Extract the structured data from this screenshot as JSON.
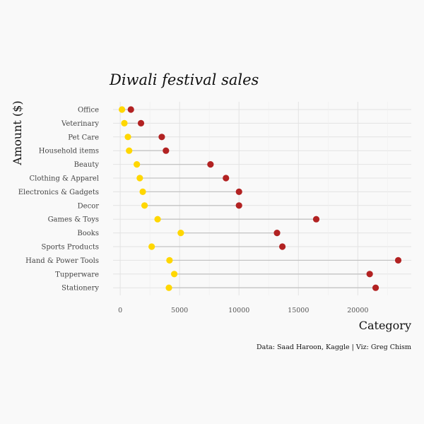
{
  "chart_data": {
    "type": "dumbbell",
    "title": "Diwali festival sales",
    "xlabel": "Category",
    "ylabel": "Amount ($)",
    "caption": "Data: Saad Haroon, Kaggle | Viz: Greg Chism",
    "categories": [
      "Office",
      "Veterinary",
      "Pet Care",
      "Household items",
      "Beauty",
      "Clothing & Apparel",
      "Electronics & Gadgets",
      "Decor",
      "Games & Toys",
      "Books",
      "Sports Products",
      "Hand & Power Tools",
      "Tupperware",
      "Stationery"
    ],
    "series": [
      {
        "color": "#FFD700",
        "values": [
          150,
          350,
          650,
          750,
          1400,
          1650,
          1900,
          2050,
          3150,
          5100,
          2650,
          4150,
          4550,
          4100
        ]
      },
      {
        "color": "#B22222",
        "values": [
          900,
          1750,
          3500,
          3850,
          7600,
          8900,
          10000,
          10000,
          16500,
          13200,
          13650,
          23400,
          21000,
          21500
        ]
      }
    ],
    "xticks": [
      0,
      5000,
      10000,
      15000,
      20000
    ],
    "xtick_labels": [
      "0",
      "5000",
      "10000",
      "15000",
      "20000"
    ],
    "xlim": [
      -600,
      24500
    ],
    "grid": true
  }
}
